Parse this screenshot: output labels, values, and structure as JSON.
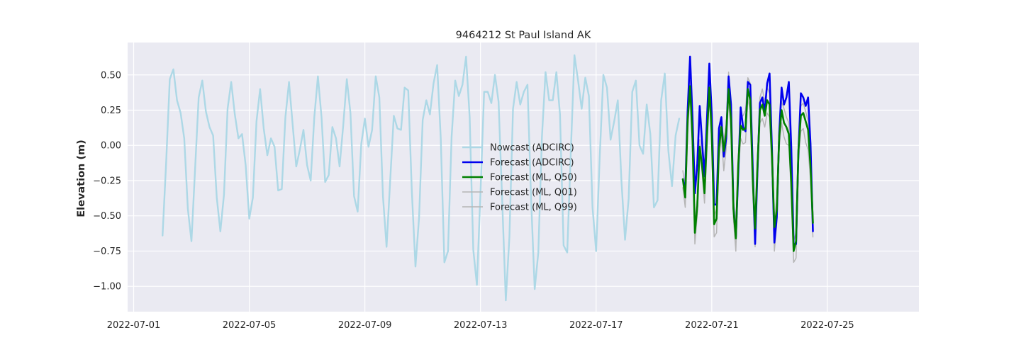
{
  "chart_data": {
    "type": "line",
    "title": "9464212 St Paul Island AK",
    "xlabel": "",
    "ylabel": "Elevation (m)",
    "xlim": [
      "2022-06-30T19:00",
      "2022-07-28T04:00"
    ],
    "ylim": [
      -1.18,
      0.73
    ],
    "x_ticks": [
      "2022-07-01",
      "2022-07-05",
      "2022-07-09",
      "2022-07-13",
      "2022-07-17",
      "2022-07-21",
      "2022-07-25"
    ],
    "y_ticks": [
      -1.0,
      -0.75,
      -0.5,
      -0.25,
      0.0,
      0.25,
      0.5
    ],
    "y_tick_labels": [
      "−1.00",
      "−0.75",
      "−0.50",
      "−0.25",
      "0.00",
      "0.25",
      "0.50"
    ],
    "grid": true,
    "legend_position": "center",
    "series": [
      {
        "name": "Nowcast (ADCIRC)",
        "color": "#add8e6",
        "width": 2.4,
        "x_start": "2022-07-02T00:00",
        "step_hours": 3,
        "values": [
          -0.64,
          -0.12,
          0.47,
          0.54,
          0.32,
          0.23,
          0.05,
          -0.45,
          -0.68,
          -0.17,
          0.34,
          0.46,
          0.24,
          0.13,
          0.07,
          -0.37,
          -0.61,
          -0.35,
          0.26,
          0.45,
          0.22,
          0.05,
          0.08,
          -0.14,
          -0.52,
          -0.37,
          0.17,
          0.4,
          0.12,
          -0.07,
          0.05,
          -0.01,
          -0.32,
          -0.31,
          0.2,
          0.45,
          0.15,
          -0.15,
          -0.03,
          0.11,
          -0.14,
          -0.25,
          0.2,
          0.49,
          0.2,
          -0.26,
          -0.21,
          0.13,
          0.05,
          -0.15,
          0.14,
          0.47,
          0.23,
          -0.36,
          -0.47,
          0.01,
          0.19,
          -0.01,
          0.11,
          0.49,
          0.34,
          -0.36,
          -0.72,
          -0.25,
          0.21,
          0.12,
          0.11,
          0.41,
          0.39,
          -0.33,
          -0.86,
          -0.51,
          0.18,
          0.32,
          0.22,
          0.44,
          0.57,
          0.05,
          -0.83,
          -0.75,
          0.06,
          0.46,
          0.35,
          0.43,
          0.63,
          0.2,
          -0.74,
          -0.99,
          -0.33,
          0.38,
          0.38,
          0.3,
          0.5,
          0.31,
          -0.39,
          -1.1,
          -0.65,
          0.26,
          0.45,
          0.29,
          0.38,
          0.43,
          -0.38,
          -1.02,
          -0.76,
          0.06,
          0.52,
          0.32,
          0.32,
          0.52,
          0.22,
          -0.71,
          -0.76,
          -0.04,
          0.64,
          0.46,
          0.26,
          0.48,
          0.35,
          -0.44,
          -0.75,
          -0.08,
          0.5,
          0.41,
          0.04,
          0.17,
          0.32,
          -0.25,
          -0.67,
          -0.38,
          0.38,
          0.46,
          0.0,
          -0.06,
          0.29,
          0.08,
          -0.44,
          -0.39,
          0.32,
          0.51,
          -0.04,
          -0.29,
          0.07,
          0.19
        ]
      },
      {
        "name": "Forecast (ADCIRC)",
        "color": "#0000ee",
        "width": 2.6,
        "x_start": "2022-07-20T00:00",
        "step_hours": 2,
        "values": [
          -0.24,
          -0.32,
          0.25,
          0.63,
          0.2,
          -0.34,
          -0.13,
          0.28,
          0.02,
          -0.22,
          0.18,
          0.58,
          0.22,
          -0.42,
          -0.42,
          0.12,
          0.2,
          -0.08,
          0.05,
          0.49,
          0.29,
          -0.43,
          -0.65,
          -0.2,
          0.27,
          0.13,
          0.1,
          0.45,
          0.43,
          -0.15,
          -0.7,
          -0.17,
          0.3,
          0.34,
          0.24,
          0.44,
          0.51,
          -0.03,
          -0.69,
          -0.51,
          0.08,
          0.41,
          0.29,
          0.34,
          0.45,
          -0.01,
          -0.7,
          -0.7,
          -0.04,
          0.37,
          0.34,
          0.28,
          0.34,
          0.01,
          -0.61
        ]
      },
      {
        "name": "Forecast (ML, Q50)",
        "color": "#008000",
        "width": 2.6,
        "x_start": "2022-07-20T00:00",
        "step_hours": 2,
        "values": [
          -0.24,
          -0.37,
          0.18,
          0.42,
          0.05,
          -0.62,
          -0.43,
          -0.01,
          -0.15,
          -0.34,
          0.06,
          0.41,
          0.08,
          -0.56,
          -0.52,
          -0.02,
          0.13,
          -0.04,
          0.09,
          0.4,
          0.18,
          -0.45,
          -0.66,
          -0.14,
          0.14,
          0.11,
          0.12,
          0.4,
          0.32,
          -0.24,
          -0.59,
          -0.14,
          0.25,
          0.29,
          0.21,
          0.32,
          0.29,
          -0.08,
          -0.58,
          -0.46,
          0.06,
          0.25,
          0.16,
          0.13,
          0.08,
          -0.26,
          -0.75,
          -0.68,
          -0.03,
          0.21,
          0.23,
          0.17,
          0.11,
          -0.15,
          -0.55
        ]
      },
      {
        "name": "Forecast (ML, Q01)",
        "color": "#b5b5b5",
        "width": 1.5,
        "x_start": "2022-07-20T00:00",
        "step_hours": 2,
        "values": [
          -0.3,
          -0.44,
          0.09,
          0.38,
          -0.02,
          -0.7,
          -0.49,
          -0.05,
          -0.19,
          -0.41,
          -0.02,
          0.36,
          0.0,
          -0.65,
          -0.62,
          -0.09,
          0.06,
          -0.18,
          -0.02,
          0.33,
          0.09,
          -0.52,
          -0.75,
          -0.22,
          0.05,
          0.01,
          0.02,
          0.33,
          0.25,
          -0.32,
          -0.72,
          -0.23,
          0.16,
          0.19,
          0.13,
          0.23,
          0.2,
          -0.16,
          -0.75,
          -0.55,
          -0.02,
          0.16,
          0.06,
          0.01,
          0.0,
          -0.35,
          -0.83,
          -0.8,
          -0.11,
          0.1,
          0.12,
          0.02,
          -0.03,
          -0.24,
          -0.65
        ]
      },
      {
        "name": "Forecast (ML, Q99)",
        "color": "#b5b5b5",
        "width": 1.5,
        "x_start": "2022-07-20T00:00",
        "step_hours": 2,
        "values": [
          -0.18,
          -0.3,
          0.25,
          0.46,
          0.12,
          -0.55,
          -0.37,
          0.04,
          -0.09,
          -0.28,
          0.12,
          0.47,
          0.15,
          -0.5,
          -0.45,
          0.05,
          0.2,
          0.03,
          0.15,
          0.52,
          0.25,
          -0.38,
          -0.58,
          -0.07,
          0.2,
          0.21,
          0.25,
          0.48,
          0.44,
          -0.17,
          -0.53,
          -0.08,
          0.34,
          0.4,
          0.31,
          0.41,
          0.37,
          -0.02,
          -0.52,
          -0.39,
          0.12,
          0.31,
          0.26,
          0.2,
          0.16,
          -0.18,
          -0.68,
          -0.62,
          0.03,
          0.28,
          0.3,
          0.24,
          0.17,
          -0.08,
          -0.48
        ]
      }
    ]
  }
}
